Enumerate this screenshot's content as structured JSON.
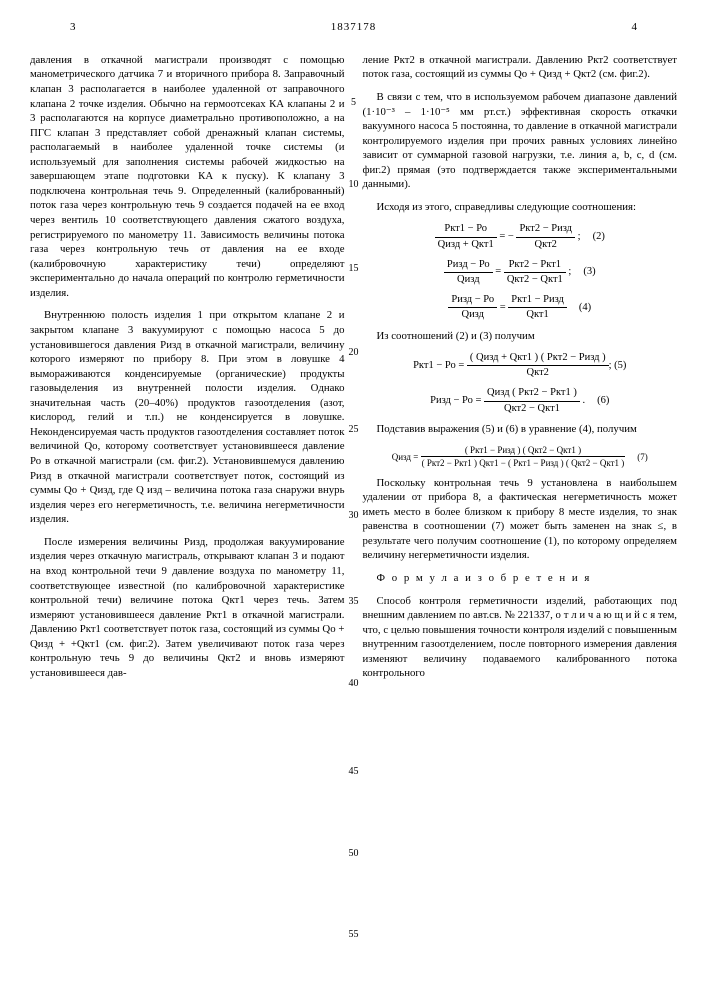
{
  "header": {
    "page_left": "3",
    "patent_number": "1837178",
    "page_right": "4"
  },
  "line_numbers": [
    "5",
    "10",
    "15",
    "20",
    "25",
    "30",
    "35",
    "40",
    "45",
    "50",
    "55"
  ],
  "line_number_spacings": [
    44,
    68,
    71,
    70,
    64,
    72,
    73,
    68,
    75,
    68,
    68
  ],
  "left_col": {
    "p1": "давления в откачной магистрали производят с помощью манометрического датчика 7 и вторичного прибора 8. Заправочный клапан 3 располагается в наиболее удаленной от заправочного клапана 2 точке изделия. Обычно на гермоотсеках КА клапаны 2 и 3 располагаются на корпусе диаметрально противоположно, а на ПГС клапан 3 представляет собой дренажный клапан системы, располагаемый в наиболее удаленной точке системы (и используемый для заполнения системы рабочей жидкостью на завершающем этапе подготовки КА к пуску). К клапану 3 подключена контрольная течь 9. Определенный (калиброванный) поток газа через контрольную течь 9 создается подачей на ее вход через вентиль 10 соответствующего давления сжатого воздуха, регистрируемого по манометру 11. Зависимость величины потока газа через контрольную течь от давления на ее входе (калибровочную характеристику течи) определяют экспериментально до начала операций по контролю герметичности изделия.",
    "p2": "Внутреннюю полость изделия 1 при открытом клапане 2 и закрытом клапане 3 вакуумируют с помощью насоса 5 до установившегося давления Ризд в откачной магистрали, величину которого измеряют по прибору 8. При этом в ловушке 4 вымораживаются конденсируемые (органические) продукты газовыделения из внутренней полости изделия. Однако значительная часть (20–40%) продуктов газоотделения (азот, кислород, гелий и т.п.) не конденсируется в ловушке. Неконденсируемая часть продуктов газоотделения составляет поток величиной Qо, которому соответствует установившееся давление Ро в откачной магистрали (см. фиг.2). Установившемуся давлению Ризд в откачной магистрали соответствует поток, состоящий из суммы Qо + Qизд, где Q изд – величина потока газа снаружи внурь изделия через его негерметичность, т.е. величина негерметичности изделия.",
    "p3": "После измерения величины Ризд, продолжая вакуумирование изделия через откачную магистраль, открывают клапан 3 и подают на вход контрольной течи 9 давление воздуха по манометру 11, соответствующее известной (по калибровочной характеристике контрольной течи) величине потока Qкт1 через течь. Затем измеряют установившееся давление Ркт1 в откачной магистрали. Давлению Ркт1 соответствует поток газа, состоящий из суммы Qо + Qизд + +Qкт1 (см. фиг.2). Затем увеличивают поток газа через контрольную течь 9 до величины Qкт2 и вновь измеряют установившееся дав-"
  },
  "right_col": {
    "p1": "ление Ркт2 в откачной магистрали. Давлению Ркт2 соответствует поток газа, состоящий из суммы Qо + Qизд + Qкт2 (см. фиг.2).",
    "p2": "В связи с тем, что в используемом рабочем диапазоне давлений (1·10⁻³ – 1·10⁻⁵ мм рт.ст.) эффективная скорость откачки вакуумного насоса 5 постоянна, то давление в откачной магистрали контролируемого изделия при прочих равных условиях линейно зависит от суммарной газовой нагрузки, т.е. линия a, b, c, d (см. фиг.2) прямая (это подтверждается также экспериментальными данными).",
    "p3": "Исходя из этого, справедливы следующие соотношения:",
    "f2": {
      "lhs_num": "Ркт1 − Ро",
      "lhs_den": "Qизд + Qкт1",
      "rhs_num": "Ркт2 − Ризд",
      "rhs_den": "Qкт2",
      "label": "(2)"
    },
    "f3": {
      "lhs_num": "Ризд − Ро",
      "lhs_den": "Qизд",
      "rhs_num": "Ркт2 − Ркт1",
      "rhs_den": "Qкт2 − Qкт1",
      "label": "(3)"
    },
    "f4": {
      "lhs_num": "Ризд − Ро",
      "lhs_den": "Qизд",
      "rhs_num": "Ркт1 − Ризд",
      "rhs_den": "Qкт1",
      "label": "(4)"
    },
    "p4": "Из соотношений (2) и (3) получим",
    "f5": {
      "lhs": "Ркт1 − Ро =",
      "num": "( Qизд + Qкт1 ) ( Ркт2 − Ризд )",
      "den": "Qкт2",
      "label": "; (5)"
    },
    "f6": {
      "lhs": "Ризд − Ро =",
      "num": "Qизд ( Ркт2 − Ркт1 )",
      "den": "Qкт2 − Qкт1",
      "label": "(6)"
    },
    "p5": "Подставив выражения (5) и (6) в уравнение (4), получим",
    "f7": {
      "lhs": "Qизд =",
      "num": "( Ркт1 − Ризд ) ( Qкт2 − Qкт1 )",
      "den": "( Ркт2 − Ркт1 ) Qкт1 − ( Ркт1 − Ризд ) ( Qкт2 − Qкт1 )",
      "label": "(7)"
    },
    "p6": "Поскольку контрольная течь 9 установлена в наибольшем удалении от прибора 8, а фактическая негерметичность может иметь место в более близком к прибору 8 месте изделия, то знак равенства в соотношении (7) может быть заменен на знак ≤, в результате чего получим соотношение (1), по которому определяем величину негерметичности изделия.",
    "claim_title": "Ф о р м у л а  и з о б р е т е н и я",
    "p7": "Способ контроля герметичности изделий, работающих под внешним давлением по авт.св. № 221337, о т л и ч а ю щ и й с я тем, что, с целью повышения точности контроля изделий с повышенным внутренним газоотделением, после повторного измерения давления изменяют величину подаваемого калиброванного потока контрольного"
  }
}
